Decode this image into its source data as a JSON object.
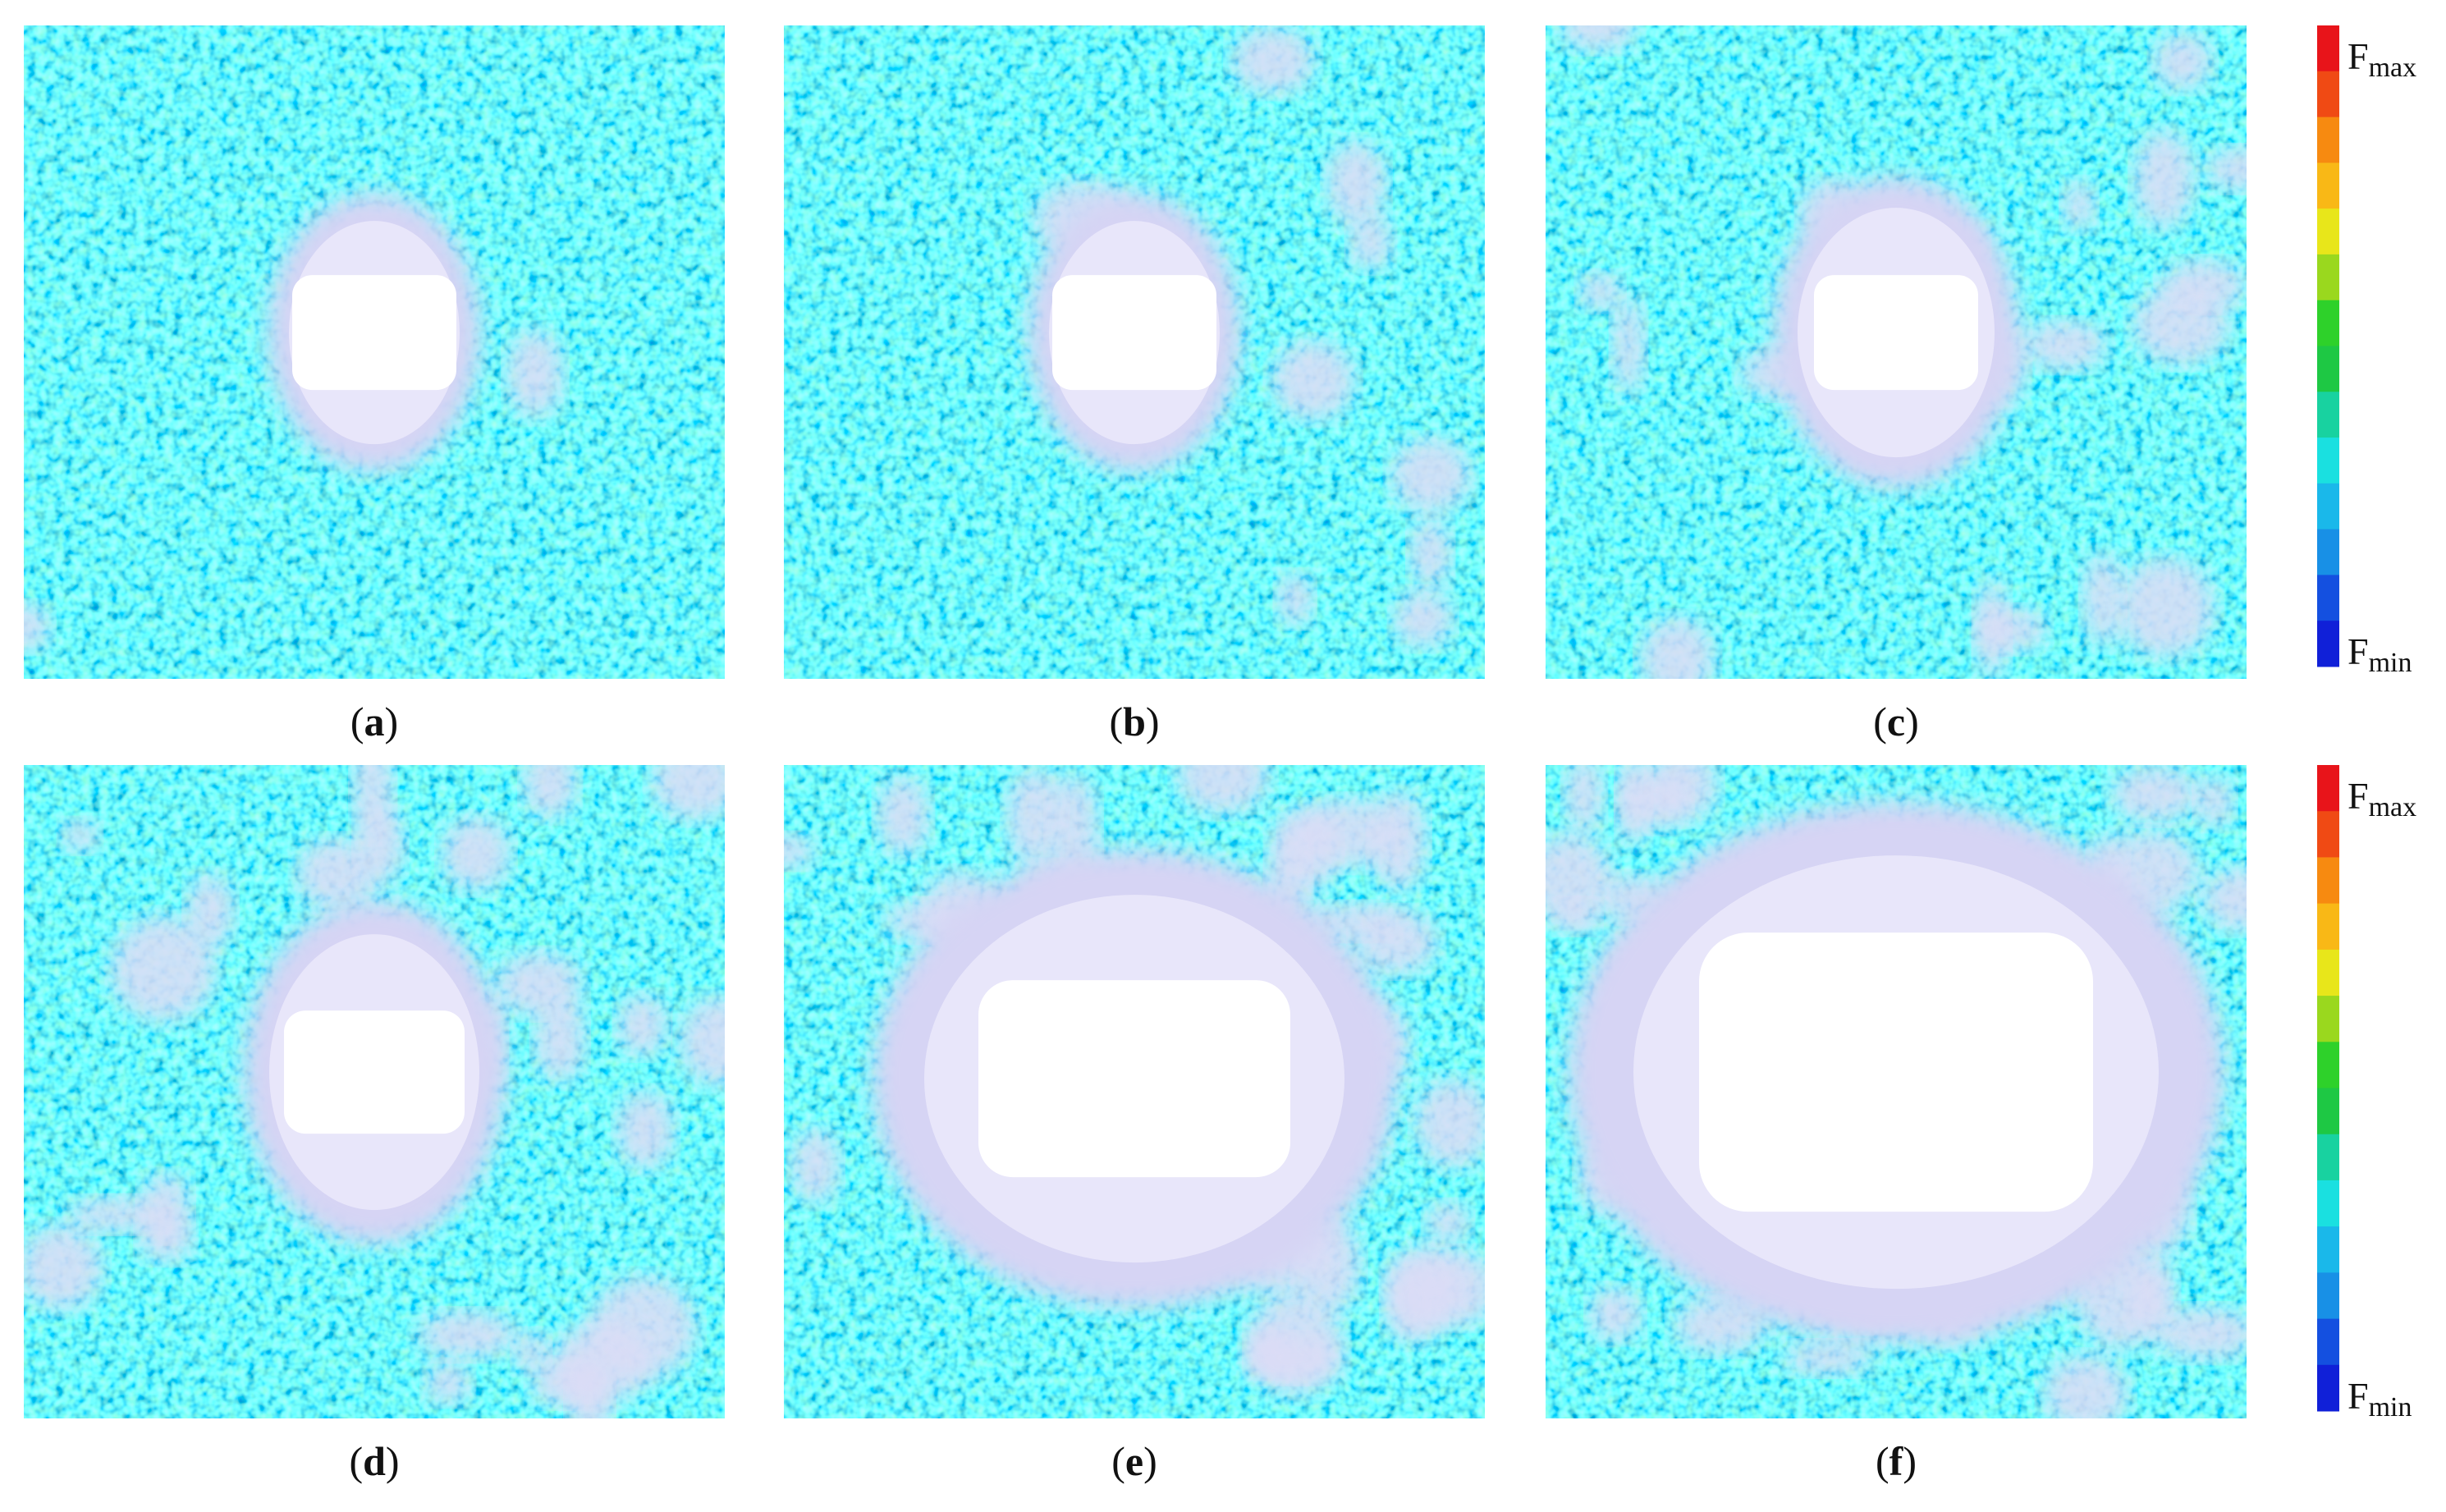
{
  "panels": [
    {
      "label": "(a)"
    },
    {
      "label": "(b)"
    },
    {
      "label": "(c)"
    },
    {
      "label": "(d)"
    },
    {
      "label": "(e)"
    },
    {
      "label": "(f)"
    }
  ],
  "colorbars": [
    {
      "max": {
        "symbol": "F",
        "subscript": "max"
      },
      "min": {
        "symbol": "F",
        "subscript": "min"
      }
    },
    {
      "max": {
        "symbol": "F",
        "subscript": "max"
      },
      "min": {
        "symbol": "F",
        "subscript": "min"
      }
    }
  ],
  "colorbar_colors": [
    "#e8141a",
    "#f04a14",
    "#f78a10",
    "#f9b816",
    "#e8e61a",
    "#9ad81e",
    "#2ed12a",
    "#1ec844",
    "#18d2a0",
    "#1ae0e0",
    "#1ab8ea",
    "#1890e6",
    "#1450e0",
    "#1020d8"
  ]
}
